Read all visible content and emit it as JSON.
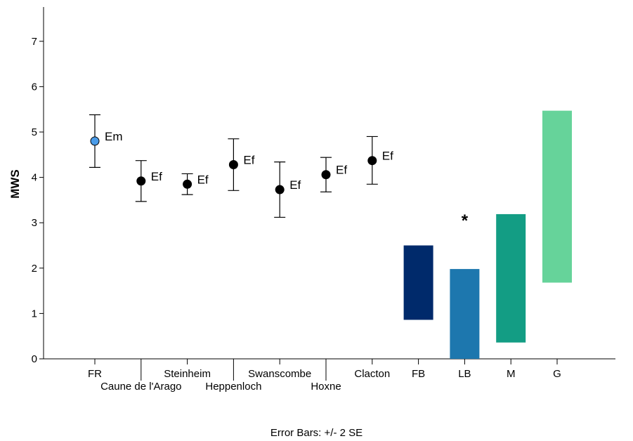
{
  "footer_note": "Error Bars: +/- 2 SE",
  "chart_data": {
    "type": "scatter",
    "ylabel": "MWS",
    "ylim": [
      0,
      7.8
    ],
    "yticks": [
      0,
      1,
      2,
      3,
      4,
      5,
      6,
      7
    ],
    "grid": false,
    "sites": [
      {
        "label": "FR",
        "value": 4.8,
        "err_low": 4.22,
        "err_high": 5.38,
        "tag": "Em",
        "color": "#4a9be8",
        "label_row": 1
      },
      {
        "label": "Caune de l'Arago",
        "value": 3.92,
        "err_low": 3.47,
        "err_high": 4.37,
        "tag": "Ef",
        "color": "#000000",
        "label_row": 2
      },
      {
        "label": "Steinheim",
        "value": 3.85,
        "err_low": 3.62,
        "err_high": 4.08,
        "tag": "Ef",
        "color": "#000000",
        "label_row": 1
      },
      {
        "label": "Heppenloch",
        "value": 4.28,
        "err_low": 3.71,
        "err_high": 4.85,
        "tag": "Ef",
        "color": "#000000",
        "label_row": 2
      },
      {
        "label": "Swanscombe",
        "value": 3.73,
        "err_low": 3.12,
        "err_high": 4.34,
        "tag": "Ef",
        "color": "#000000",
        "label_row": 1
      },
      {
        "label": "Hoxne",
        "value": 4.06,
        "err_low": 3.68,
        "err_high": 4.44,
        "tag": "Ef",
        "color": "#000000",
        "label_row": 2
      },
      {
        "label": "Clacton",
        "value": 4.37,
        "err_low": 3.85,
        "err_high": 4.9,
        "tag": "Ef",
        "color": "#000000",
        "label_row": 1
      }
    ],
    "ranges": [
      {
        "label": "FB",
        "low": 0.86,
        "high": 2.5,
        "color": "#002a6b"
      },
      {
        "label": "LB",
        "low": 0.0,
        "high": 1.98,
        "color": "#1d77ae",
        "annotation": "*"
      },
      {
        "label": "M",
        "low": 0.36,
        "high": 3.19,
        "color": "#139d84"
      },
      {
        "label": "G",
        "low": 1.68,
        "high": 5.47,
        "color": "#66d39a"
      }
    ]
  }
}
